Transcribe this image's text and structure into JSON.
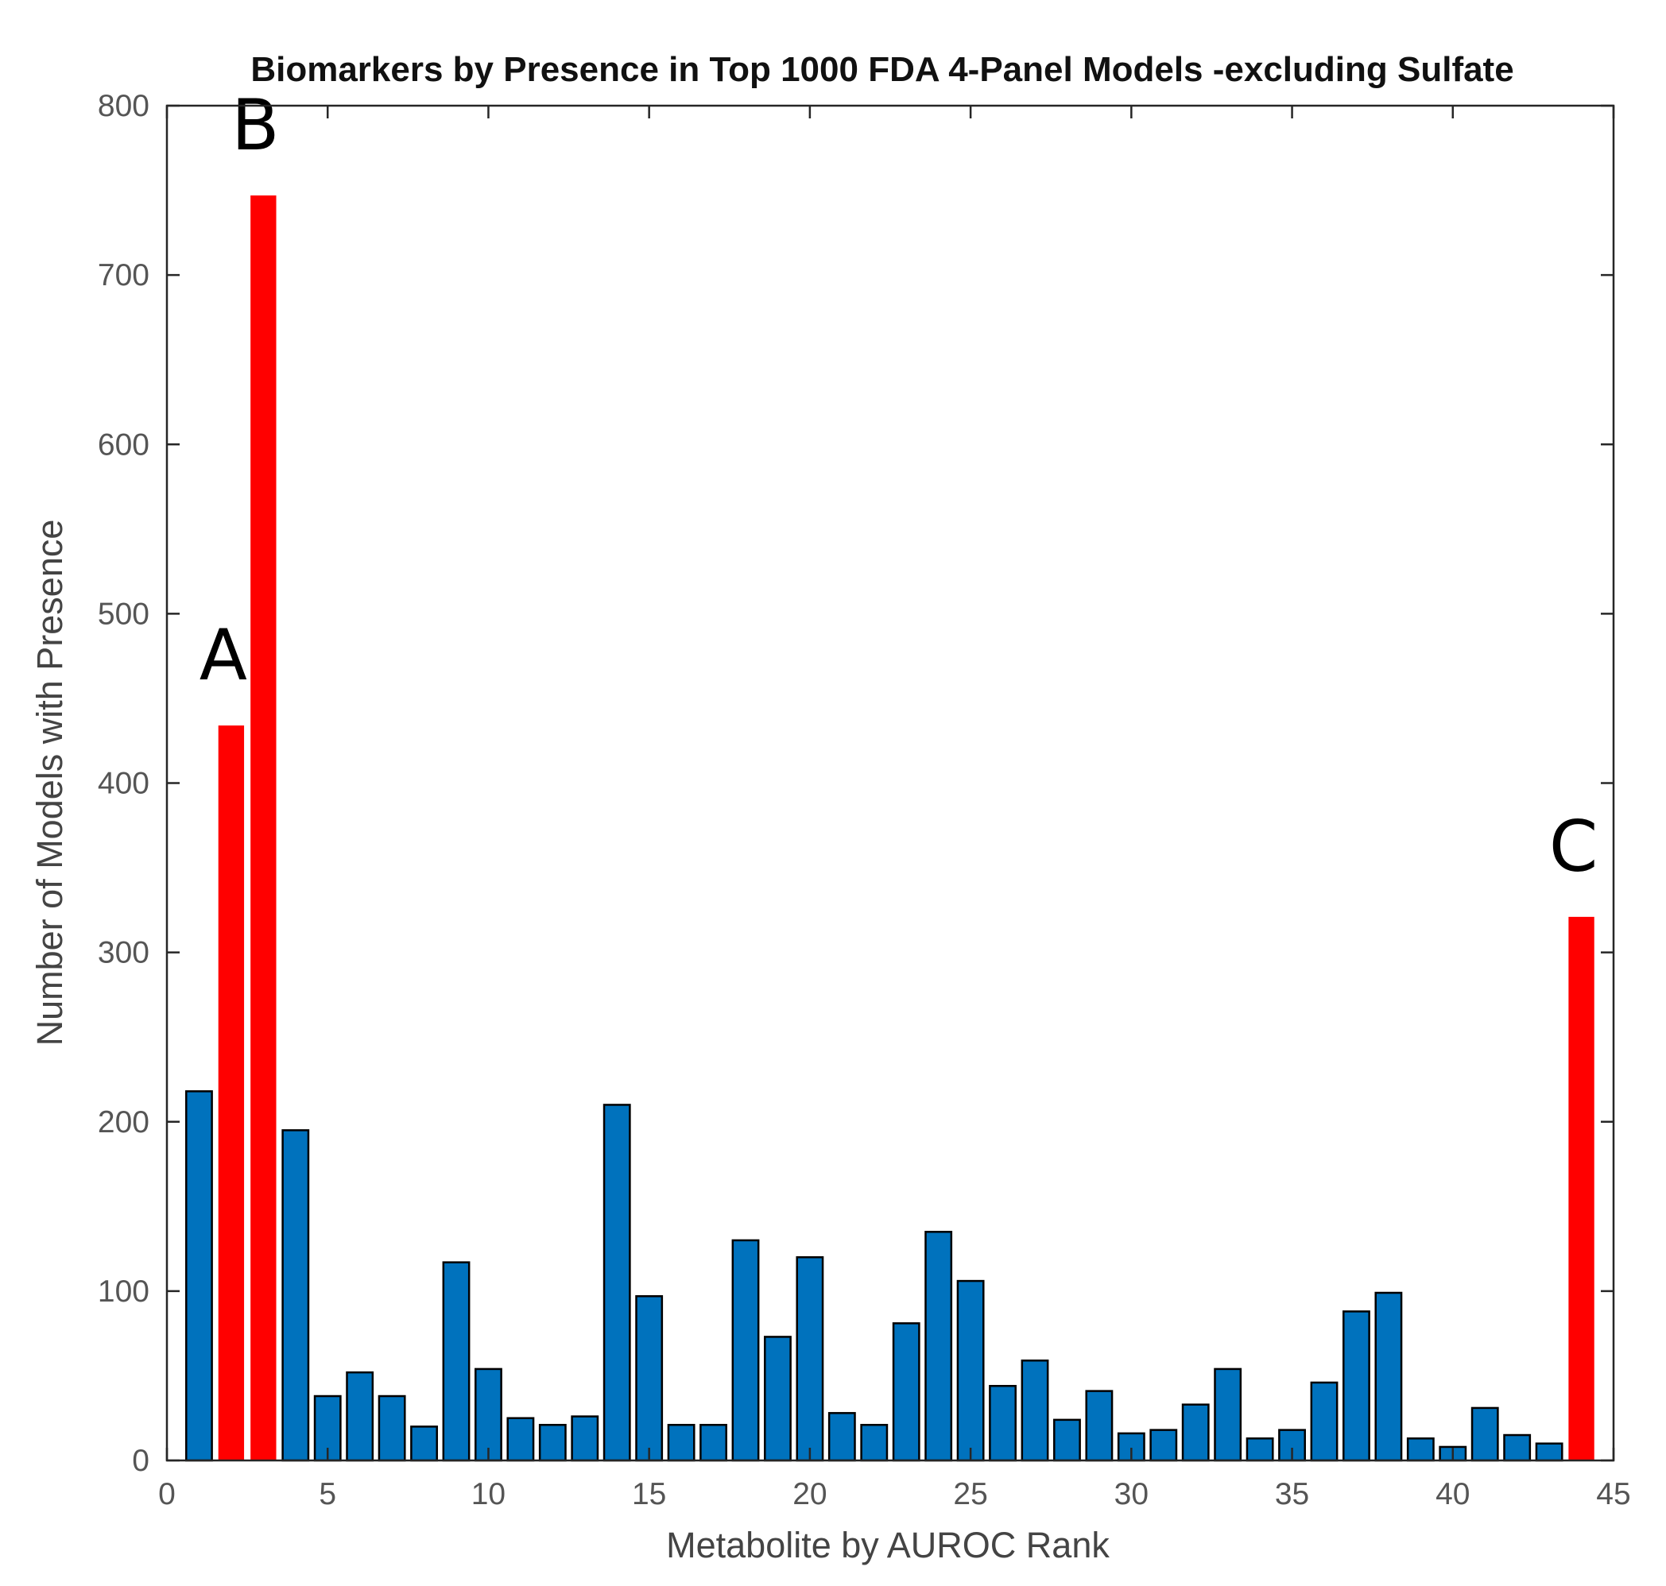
{
  "chart_data": {
    "type": "bar",
    "title": "Biomarkers by Presence in Top 1000 FDA 4-Panel Models -excluding Sulfate",
    "xlabel": "Metabolite by AUROC Rank",
    "ylabel": "Number of Models with Presence",
    "xlim": [
      0,
      45
    ],
    "ylim": [
      0,
      800
    ],
    "xticks": [
      0,
      5,
      10,
      15,
      20,
      25,
      30,
      35,
      40,
      45
    ],
    "yticks": [
      0,
      100,
      200,
      300,
      400,
      500,
      600,
      700,
      800
    ],
    "grid": false,
    "x": [
      1,
      2,
      3,
      4,
      5,
      6,
      7,
      8,
      9,
      10,
      11,
      12,
      13,
      14,
      15,
      16,
      17,
      18,
      19,
      20,
      21,
      22,
      23,
      24,
      25,
      26,
      27,
      28,
      29,
      30,
      31,
      32,
      33,
      34,
      35,
      36,
      37,
      38,
      39,
      40,
      41,
      42,
      43,
      44
    ],
    "values": [
      218,
      434,
      747,
      195,
      38,
      52,
      38,
      20,
      117,
      54,
      25,
      21,
      26,
      210,
      97,
      21,
      21,
      130,
      73,
      120,
      28,
      21,
      81,
      135,
      106,
      44,
      59,
      24,
      41,
      16,
      18,
      33,
      54,
      13,
      18,
      46,
      88,
      99,
      13,
      8,
      31,
      15,
      10,
      321
    ],
    "colors": {
      "default": "#0072BD",
      "highlight": "#FF0000"
    },
    "highlighted": [
      2,
      3,
      44
    ],
    "annotations": [
      {
        "text": "A",
        "x": 2
      },
      {
        "text": "B",
        "x": 3
      },
      {
        "text": "C",
        "x": 44
      }
    ]
  }
}
